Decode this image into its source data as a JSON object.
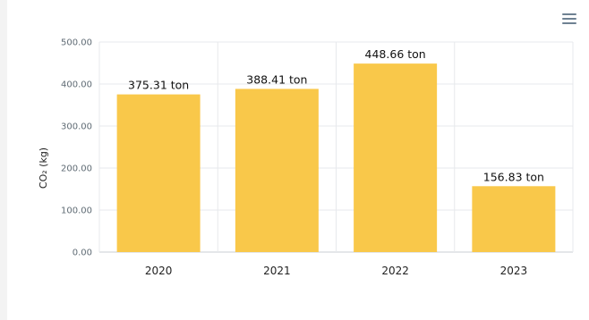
{
  "chart_data": {
    "type": "bar",
    "categories": [
      "2020",
      "2021",
      "2022",
      "2023"
    ],
    "values": [
      375.31,
      388.41,
      448.66,
      156.83
    ],
    "data_labels": [
      "375.31 ton",
      "388.41 ton",
      "448.66 ton",
      "156.83 ton"
    ],
    "ylabel": "CO₂ (kg)",
    "ylim": [
      0,
      500
    ],
    "y_ticks": [
      "0.00",
      "100.00",
      "200.00",
      "300.00",
      "400.00",
      "500.00"
    ],
    "grid": true,
    "bar_color": "#f9c84a"
  },
  "toolbar": {
    "menu_icon": "hamburger-menu-icon"
  }
}
